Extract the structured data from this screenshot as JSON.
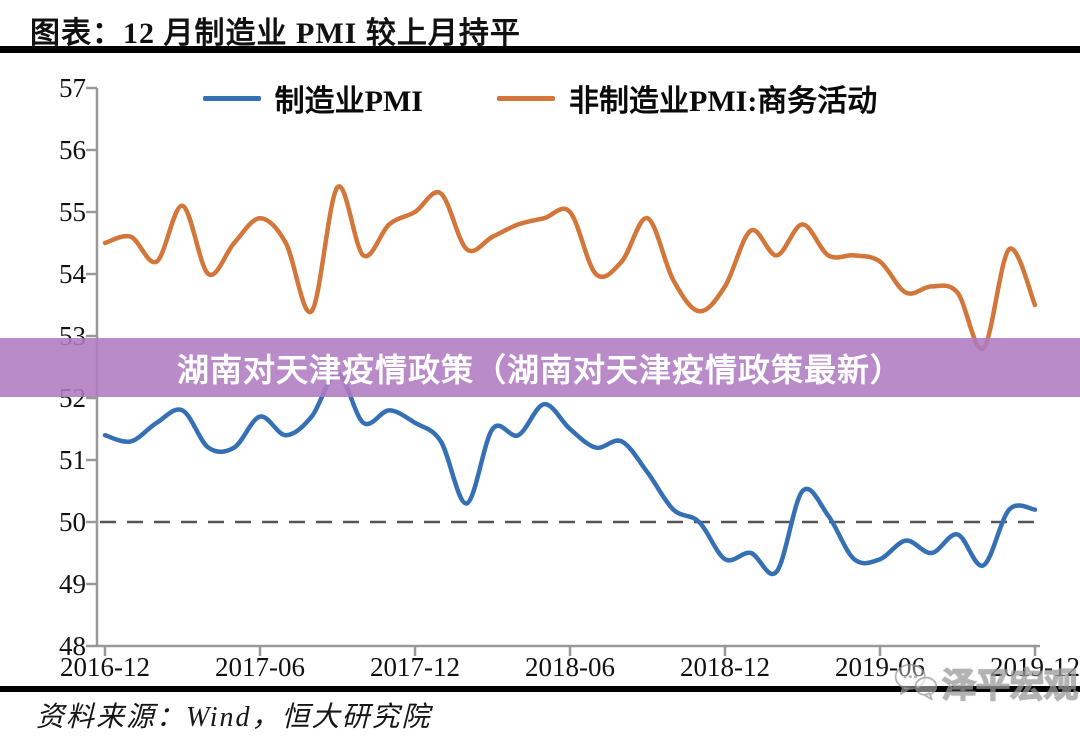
{
  "page": {
    "title": "图表：12 月制造业 PMI 较上月持平",
    "source": "资料来源：Wind，恒大研究院",
    "watermark": "泽平宏观",
    "overlay_banner": {
      "text": "湖南对天津疫情政策（湖南对天津疫情政策最新）",
      "color": "#b17bc2"
    }
  },
  "chart_data": {
    "type": "line",
    "title": "图表：12 月制造业 PMI 较上月持平",
    "x": [
      "2016-12",
      "2017-01",
      "2017-02",
      "2017-03",
      "2017-04",
      "2017-05",
      "2017-06",
      "2017-07",
      "2017-08",
      "2017-09",
      "2017-10",
      "2017-11",
      "2017-12",
      "2018-01",
      "2018-02",
      "2018-03",
      "2018-04",
      "2018-05",
      "2018-06",
      "2018-07",
      "2018-08",
      "2018-09",
      "2018-10",
      "2018-11",
      "2018-12",
      "2019-01",
      "2019-02",
      "2019-03",
      "2019-04",
      "2019-05",
      "2019-06",
      "2019-07",
      "2019-08",
      "2019-09",
      "2019-10",
      "2019-11",
      "2019-12"
    ],
    "x_tick_labels": [
      "2016-12",
      "2017-06",
      "2017-12",
      "2018-06",
      "2018-12",
      "2019-06",
      "2019-12"
    ],
    "y_ticks": [
      57,
      56,
      55,
      54,
      53,
      52,
      51,
      50,
      49,
      48
    ],
    "ylim": [
      48,
      57
    ],
    "reference_line": 50,
    "grid": false,
    "legend_position": "top",
    "series": [
      {
        "name": "制造业PMI",
        "color": "#3570b4",
        "values": [
          51.4,
          51.3,
          51.6,
          51.8,
          51.2,
          51.2,
          51.7,
          51.4,
          51.7,
          52.4,
          51.6,
          51.8,
          51.6,
          51.3,
          50.3,
          51.5,
          51.4,
          51.9,
          51.5,
          51.2,
          51.3,
          50.8,
          50.2,
          50.0,
          49.4,
          49.5,
          49.2,
          50.5,
          50.1,
          49.4,
          49.4,
          49.7,
          49.5,
          49.8,
          49.3,
          50.2,
          50.2
        ]
      },
      {
        "name": "非制造业PMI:商务活动",
        "color": "#d2763a",
        "values": [
          54.5,
          54.6,
          54.2,
          55.1,
          54.0,
          54.5,
          54.9,
          54.5,
          53.4,
          55.4,
          54.3,
          54.8,
          55.0,
          55.3,
          54.4,
          54.6,
          54.8,
          54.9,
          55.0,
          54.0,
          54.2,
          54.9,
          53.9,
          53.4,
          53.8,
          54.7,
          54.3,
          54.8,
          54.3,
          54.3,
          54.2,
          53.7,
          53.8,
          53.7,
          52.8,
          54.4,
          53.5
        ]
      }
    ]
  }
}
